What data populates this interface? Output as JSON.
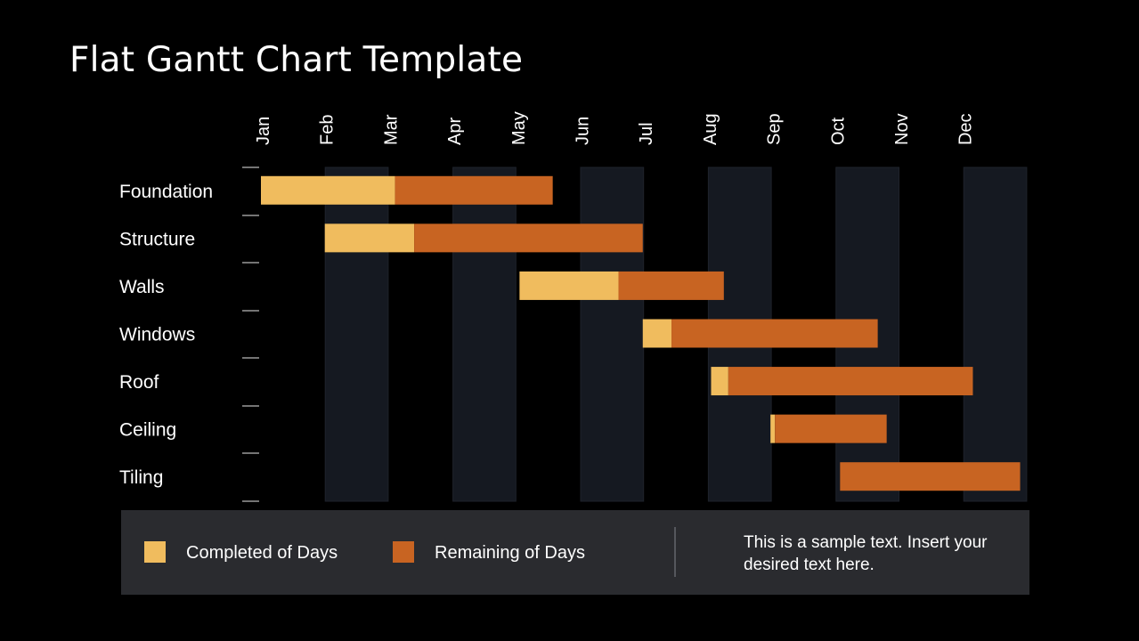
{
  "slide": {
    "title": "Flat Gantt Chart Template"
  },
  "colors": {
    "background": "#000000",
    "column_band": "#151921",
    "completed": "#f0bc5e",
    "remaining": "#c86422",
    "legend_panel": "#2a2b2f",
    "text": "#ffffff"
  },
  "chart_data": {
    "type": "bar",
    "orientation": "horizontal-stacked",
    "title": "",
    "xlabel": "",
    "ylabel": "",
    "x_axis_position": "top",
    "x_tick_labels": [
      "Jan",
      "Feb",
      "Mar",
      "Apr",
      "May",
      "Jun",
      "Jul",
      "Aug",
      "Sep",
      "Oct",
      "Nov",
      "Dec"
    ],
    "xlim": [
      0,
      12
    ],
    "x_unit": "month",
    "categories": [
      "Foundation",
      "Structure",
      "Walls",
      "Windows",
      "Roof",
      "Ceiling",
      "Tiling"
    ],
    "start": [
      0.0,
      1.0,
      4.05,
      5.98,
      7.05,
      7.98,
      9.07
    ],
    "series": [
      {
        "name": "Completed  of Days",
        "values": [
          2.1,
          1.4,
          1.55,
          0.45,
          0.27,
          0.07,
          0.0
        ]
      },
      {
        "name": "Remaining  of Days",
        "values": [
          2.47,
          3.58,
          1.65,
          3.23,
          3.83,
          1.75,
          2.82
        ]
      }
    ],
    "alternating_month_bands": [
      "Feb",
      "Apr",
      "Jun",
      "Aug",
      "Oct",
      "Dec"
    ],
    "grid": false,
    "legend_position": "bottom"
  },
  "legend": {
    "completed_label": "Completed  of Days",
    "remaining_label": "Remaining  of Days"
  },
  "note": {
    "text": "This is a sample text. Insert your desired text here."
  }
}
